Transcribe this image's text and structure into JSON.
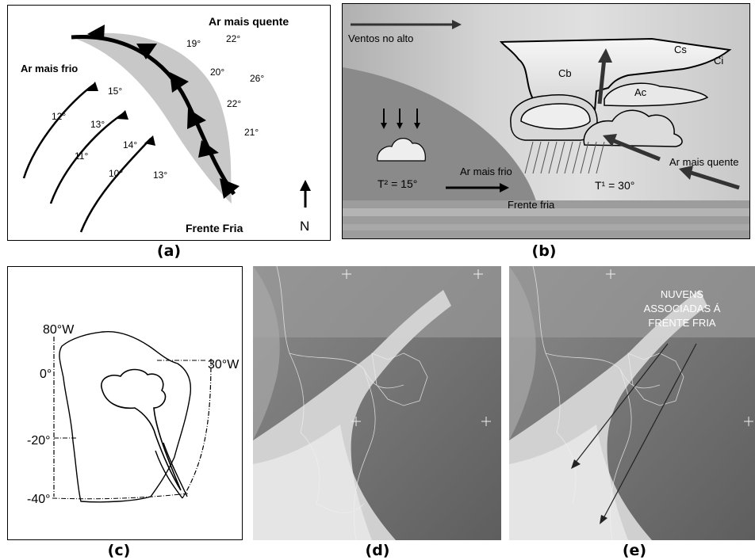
{
  "captions": {
    "a": "(a)",
    "b": "(b)",
    "c": "(c)",
    "d": "(d)",
    "e": "(e)"
  },
  "panel_a": {
    "warm_air": "Ar mais quente",
    "cold_air": "Ar mais frio",
    "front_name": "Frente Fria",
    "north": "N",
    "temps": {
      "t19": "19°",
      "t22a": "22°",
      "t20": "20°",
      "t26": "26°",
      "t22b": "22°",
      "t21": "21°",
      "t15": "15°",
      "t12": "12°",
      "t13a": "13°",
      "t11": "11°",
      "t14": "14°",
      "t10": "10°",
      "t13b": "13°"
    }
  },
  "panel_b": {
    "winds_aloft": "Ventos no alto",
    "cloud_cb": "Cb",
    "cloud_cs": "Cs",
    "cloud_ci": "Ci",
    "cloud_ac": "Ac",
    "cold_air": "Ar mais frio",
    "warm_air": "Ar mais quente",
    "temp_cold": "T² = 15°",
    "temp_warm": "T¹ = 30°",
    "front": "Frente fria"
  },
  "panel_c": {
    "lon_80": "80°W",
    "lon_30": "30°W",
    "lat_0": "0°",
    "lat_20": "-20°",
    "lat_40": "-40°"
  },
  "panel_e": {
    "annotation_line1": "NUVENS",
    "annotation_line2": "ASSOCIADAS Á",
    "annotation_line3": "FRENTE FRIA"
  },
  "colors": {
    "front_band": "#c8c8c8",
    "sky_gray": "#bdbdbd",
    "ground_gray": "#9a9a9a",
    "satellite_dark": "#606060",
    "satellite_cloud": "#d8d8d8"
  }
}
